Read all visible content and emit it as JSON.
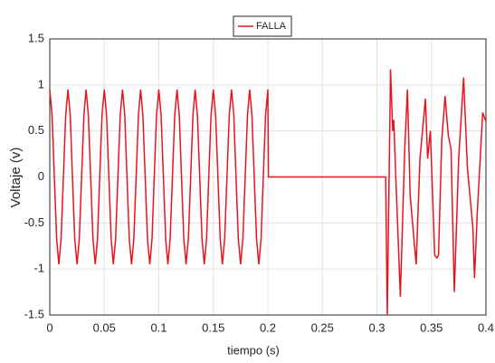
{
  "chart_data": {
    "type": "line",
    "xlabel": "tiempo (s)",
    "ylabel": "Voltaje (v)",
    "x": [
      0,
      0.0021,
      0.0042,
      0.0063,
      0.0083,
      0.0104,
      0.0125,
      0.0146,
      0.0167,
      0.0188,
      0.0208,
      0.0229,
      0.025,
      0.0271,
      0.0292,
      0.0313,
      0.0333,
      0.0354,
      0.0375,
      0.0396,
      0.0417,
      0.0438,
      0.0458,
      0.0479,
      0.05,
      0.0521,
      0.0542,
      0.0563,
      0.0583,
      0.0604,
      0.0625,
      0.0646,
      0.0667,
      0.0688,
      0.0708,
      0.0729,
      0.075,
      0.0771,
      0.0792,
      0.0813,
      0.0833,
      0.0854,
      0.0875,
      0.0896,
      0.0917,
      0.0938,
      0.0958,
      0.0979,
      0.1,
      0.1021,
      0.1042,
      0.1063,
      0.1083,
      0.1104,
      0.1125,
      0.1146,
      0.1167,
      0.1188,
      0.1208,
      0.1229,
      0.125,
      0.1271,
      0.1292,
      0.1313,
      0.1333,
      0.1354,
      0.1375,
      0.1396,
      0.1417,
      0.1438,
      0.1458,
      0.1479,
      0.15,
      0.1521,
      0.1542,
      0.1563,
      0.1583,
      0.1604,
      0.1625,
      0.1646,
      0.1667,
      0.1688,
      0.1708,
      0.1729,
      0.175,
      0.1771,
      0.1792,
      0.1813,
      0.1833,
      0.1854,
      0.1875,
      0.1896,
      0.1917,
      0.1938,
      0.1958,
      0.1979,
      0.2,
      0.2005,
      0.308,
      0.3095,
      0.3125,
      0.3145,
      0.3155,
      0.317,
      0.3215,
      0.3255,
      0.328,
      0.3305,
      0.336,
      0.3395,
      0.3445,
      0.3465,
      0.349,
      0.353,
      0.355,
      0.3565,
      0.3595,
      0.3625,
      0.3655,
      0.368,
      0.371,
      0.375,
      0.3795,
      0.383,
      0.388,
      0.3895,
      0.392,
      0.397,
      0.4
    ],
    "series": [
      {
        "name": "FALLA",
        "color": "#e8141c",
        "values": [
          0.95,
          0.67,
          0,
          -0.67,
          -0.95,
          -0.67,
          0,
          0.67,
          0.95,
          0.67,
          0,
          -0.67,
          -0.95,
          -0.67,
          0,
          0.67,
          0.95,
          0.67,
          0,
          -0.67,
          -0.95,
          -0.67,
          0,
          0.67,
          0.95,
          0.67,
          0,
          -0.67,
          -0.95,
          -0.67,
          0,
          0.67,
          0.95,
          0.67,
          0,
          -0.67,
          -0.95,
          -0.67,
          0,
          0.67,
          0.95,
          0.67,
          0,
          -0.67,
          -0.95,
          -0.67,
          0,
          0.67,
          0.95,
          0.67,
          0,
          -0.67,
          -0.95,
          -0.67,
          0,
          0.67,
          0.95,
          0.67,
          0,
          -0.67,
          -0.95,
          -0.67,
          0,
          0.67,
          0.95,
          0.67,
          0,
          -0.67,
          -0.95,
          -0.67,
          0,
          0.67,
          0.95,
          0.67,
          0,
          -0.67,
          -0.95,
          -0.67,
          0,
          0.67,
          0.95,
          0.67,
          0,
          -0.67,
          -0.95,
          -0.67,
          0,
          0.67,
          0.95,
          0.67,
          0,
          -0.67,
          -0.95,
          -0.67,
          0,
          0.67,
          0.95,
          0,
          0,
          -1.5,
          1.17,
          0.5,
          0.62,
          0.1,
          -1.3,
          0.3,
          0.95,
          -0.2,
          -0.95,
          0.2,
          0.85,
          0.2,
          0.5,
          -0.85,
          -0.88,
          -0.85,
          0.4,
          0.88,
          0.45,
          0.3,
          -1.25,
          0.2,
          1.08,
          0.1,
          -0.55,
          -1.1,
          -0.4,
          0.7,
          0.6
        ]
      }
    ],
    "xlim": [
      0,
      0.4
    ],
    "xticks": [
      0,
      0.05,
      0.1,
      0.15,
      0.2,
      0.25,
      0.3,
      0.35,
      0.4
    ],
    "ylim": [
      -1.5,
      1.5
    ],
    "yticks": [
      -1.5,
      -1,
      -0.5,
      0,
      0.5,
      1,
      1.5
    ],
    "grid": true,
    "legend": "top"
  }
}
